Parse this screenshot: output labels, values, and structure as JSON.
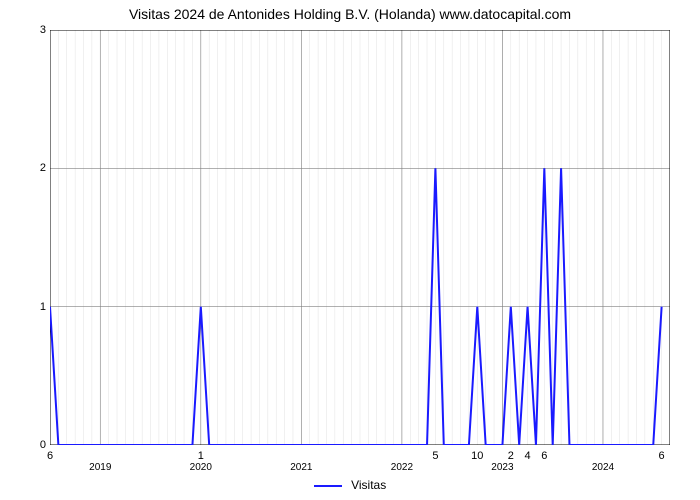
{
  "chart": {
    "type": "line",
    "title": "Visitas 2024 de Antonides Holding B.V. (Holanda) www.datocapital.com",
    "title_fontsize": 14,
    "background_color": "#ffffff",
    "line_color": "#1a1aff",
    "line_width": 2,
    "axis_color": "#000000",
    "grid_major_color": "#808080",
    "grid_minor_color": "#d9d9d9",
    "grid_major_width": 0.6,
    "grid_minor_width": 0.4,
    "ylim": [
      0,
      3
    ],
    "yticks": [
      0,
      1,
      2,
      3
    ],
    "x_domain_months": 74,
    "x_year_ticks": [
      {
        "month_index": 6,
        "label": "2019"
      },
      {
        "month_index": 18,
        "label": "2020"
      },
      {
        "month_index": 30,
        "label": "2021"
      },
      {
        "month_index": 42,
        "label": "2022"
      },
      {
        "month_index": 54,
        "label": "2023"
      },
      {
        "month_index": 66,
        "label": "2024"
      }
    ],
    "x_minor_step_months": 1,
    "x_point_labels": [
      {
        "month_index": 0,
        "text": "6"
      },
      {
        "month_index": 18,
        "text": "1"
      },
      {
        "month_index": 46,
        "text": "5"
      },
      {
        "month_index": 51,
        "text": "10"
      },
      {
        "month_index": 55,
        "text": "2"
      },
      {
        "month_index": 57,
        "text": "4"
      },
      {
        "month_index": 59,
        "text": "6"
      },
      {
        "month_index": 73,
        "text": "6"
      }
    ],
    "series": {
      "name": "Visitas",
      "points": [
        {
          "x": 0,
          "y": 1
        },
        {
          "x": 1,
          "y": 0
        },
        {
          "x": 17,
          "y": 0
        },
        {
          "x": 18,
          "y": 1
        },
        {
          "x": 19,
          "y": 0
        },
        {
          "x": 45,
          "y": 0
        },
        {
          "x": 46,
          "y": 2
        },
        {
          "x": 47,
          "y": 0
        },
        {
          "x": 50,
          "y": 0
        },
        {
          "x": 51,
          "y": 1
        },
        {
          "x": 52,
          "y": 0
        },
        {
          "x": 54,
          "y": 0
        },
        {
          "x": 55,
          "y": 1
        },
        {
          "x": 56,
          "y": 0
        },
        {
          "x": 57,
          "y": 1
        },
        {
          "x": 58,
          "y": 0
        },
        {
          "x": 59,
          "y": 2
        },
        {
          "x": 60,
          "y": 0
        },
        {
          "x": 61,
          "y": 2
        },
        {
          "x": 62,
          "y": 0
        },
        {
          "x": 72,
          "y": 0
        },
        {
          "x": 73,
          "y": 1
        }
      ]
    },
    "legend": {
      "label": "Visitas",
      "position": "bottom-center"
    }
  }
}
